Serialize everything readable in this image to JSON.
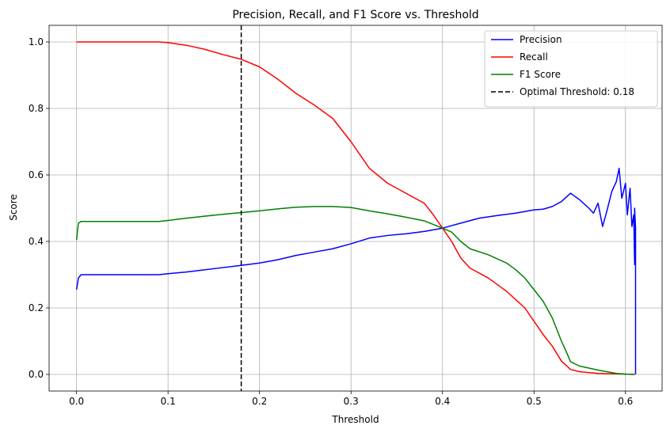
{
  "chart_data": {
    "type": "line",
    "title": "Precision, Recall, and F1 Score vs. Threshold",
    "xlabel": "Threshold",
    "ylabel": "Score",
    "xlim": [
      -0.03,
      0.64
    ],
    "ylim": [
      -0.05,
      1.05
    ],
    "xticks": [
      0.0,
      0.1,
      0.2,
      0.3,
      0.4,
      0.5,
      0.6
    ],
    "xtick_labels": [
      "0.0",
      "0.1",
      "0.2",
      "0.3",
      "0.4",
      "0.5",
      "0.6"
    ],
    "yticks": [
      0.0,
      0.2,
      0.4,
      0.6,
      0.8,
      1.0
    ],
    "ytick_labels": [
      "0.0",
      "0.2",
      "0.4",
      "0.6",
      "0.8",
      "1.0"
    ],
    "grid": true,
    "legend_position": "top-right",
    "series": [
      {
        "name": "Precision",
        "color": "#0000ff",
        "x": [
          0.0,
          0.002,
          0.005,
          0.02,
          0.05,
          0.09,
          0.1,
          0.12,
          0.15,
          0.18,
          0.2,
          0.22,
          0.24,
          0.26,
          0.28,
          0.3,
          0.32,
          0.34,
          0.36,
          0.38,
          0.4,
          0.42,
          0.44,
          0.46,
          0.48,
          0.5,
          0.51,
          0.52,
          0.53,
          0.54,
          0.545,
          0.55,
          0.56,
          0.565,
          0.57,
          0.575,
          0.58,
          0.585,
          0.59,
          0.593,
          0.596,
          0.6,
          0.602,
          0.605,
          0.607,
          0.609,
          0.61,
          0.61,
          0.611,
          0.611
        ],
        "y": [
          0.255,
          0.29,
          0.3,
          0.3,
          0.3,
          0.3,
          0.303,
          0.308,
          0.318,
          0.328,
          0.335,
          0.345,
          0.358,
          0.368,
          0.378,
          0.393,
          0.41,
          0.418,
          0.423,
          0.43,
          0.44,
          0.455,
          0.47,
          0.478,
          0.485,
          0.495,
          0.497,
          0.505,
          0.52,
          0.545,
          0.535,
          0.525,
          0.5,
          0.485,
          0.515,
          0.445,
          0.495,
          0.55,
          0.58,
          0.62,
          0.53,
          0.575,
          0.48,
          0.56,
          0.445,
          0.48,
          0.33,
          0.5,
          0.44,
          0.0
        ]
      },
      {
        "name": "Recall",
        "color": "#ff0000",
        "x": [
          0.0,
          0.05,
          0.09,
          0.1,
          0.12,
          0.14,
          0.16,
          0.18,
          0.2,
          0.22,
          0.24,
          0.26,
          0.28,
          0.3,
          0.32,
          0.34,
          0.36,
          0.38,
          0.39,
          0.4,
          0.41,
          0.42,
          0.43,
          0.45,
          0.47,
          0.49,
          0.5,
          0.51,
          0.52,
          0.53,
          0.54,
          0.55,
          0.57,
          0.6,
          0.61
        ],
        "y": [
          1.0,
          1.0,
          1.0,
          0.998,
          0.99,
          0.978,
          0.962,
          0.948,
          0.925,
          0.888,
          0.845,
          0.81,
          0.77,
          0.7,
          0.62,
          0.575,
          0.545,
          0.515,
          0.48,
          0.44,
          0.4,
          0.35,
          0.32,
          0.29,
          0.25,
          0.2,
          0.16,
          0.12,
          0.085,
          0.04,
          0.015,
          0.008,
          0.003,
          0.001,
          0.0
        ]
      },
      {
        "name": "F1 Score",
        "color": "#008000",
        "x": [
          0.0,
          0.002,
          0.005,
          0.05,
          0.09,
          0.1,
          0.12,
          0.15,
          0.18,
          0.2,
          0.22,
          0.24,
          0.26,
          0.28,
          0.3,
          0.32,
          0.34,
          0.36,
          0.38,
          0.4,
          0.41,
          0.42,
          0.43,
          0.45,
          0.47,
          0.48,
          0.49,
          0.5,
          0.51,
          0.52,
          0.53,
          0.535,
          0.54,
          0.55,
          0.57,
          0.59,
          0.6,
          0.61
        ],
        "y": [
          0.405,
          0.455,
          0.46,
          0.46,
          0.46,
          0.463,
          0.47,
          0.479,
          0.487,
          0.492,
          0.498,
          0.503,
          0.505,
          0.505,
          0.502,
          0.492,
          0.483,
          0.473,
          0.462,
          0.44,
          0.428,
          0.4,
          0.378,
          0.36,
          0.335,
          0.315,
          0.29,
          0.255,
          0.22,
          0.17,
          0.1,
          0.07,
          0.038,
          0.025,
          0.013,
          0.003,
          0.001,
          0.0
        ]
      }
    ],
    "reference_lines": [
      {
        "name": "Optimal Threshold: 0.18",
        "orientation": "vertical",
        "x": 0.18,
        "color": "#000000",
        "style": "dashed"
      }
    ]
  }
}
